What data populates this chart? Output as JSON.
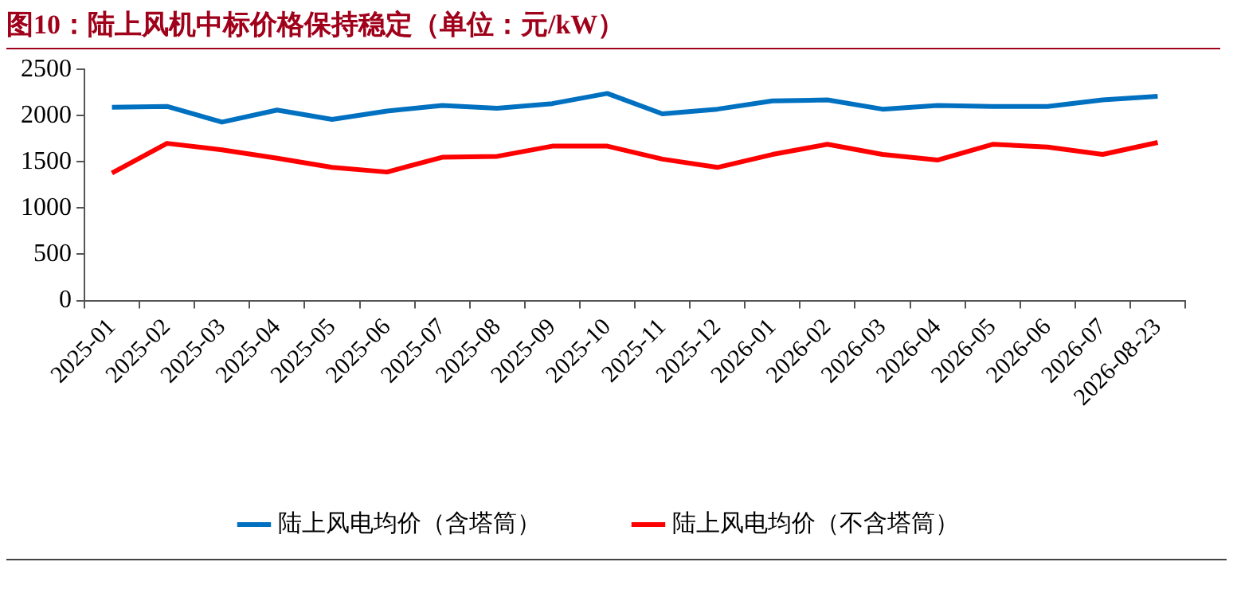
{
  "chart_data": {
    "type": "line",
    "title": "图10：陆上风机中标价格保持稳定（单位：元/kW）",
    "categories": [
      "2025-01",
      "2025-02",
      "2025-03",
      "2025-04",
      "2025-05",
      "2025-06",
      "2025-07",
      "2025-08",
      "2025-09",
      "2025-10",
      "2025-11",
      "2025-12",
      "2026-01",
      "2026-02",
      "2026-03",
      "2026-04",
      "2026-05",
      "2026-06",
      "2026-07",
      "2026-08-23"
    ],
    "series": [
      {
        "name": "陆上风电均价（含塔筒）",
        "color": "#0070c0",
        "values": [
          2090,
          2100,
          1930,
          2060,
          1960,
          2050,
          2110,
          2080,
          2130,
          2240,
          2020,
          2070,
          2160,
          2170,
          2070,
          2110,
          2100,
          2100,
          2170,
          2210
        ]
      },
      {
        "name": "陆上风电均价（不含塔筒）",
        "color": "#ff0000",
        "values": [
          1380,
          1700,
          1630,
          1540,
          1440,
          1390,
          1550,
          1560,
          1670,
          1670,
          1530,
          1440,
          1580,
          1690,
          1580,
          1520,
          1690,
          1660,
          1580,
          1710
        ]
      }
    ],
    "ylim": [
      0,
      2500
    ],
    "yticks": [
      0,
      500,
      1000,
      1500,
      2000,
      2500
    ],
    "grid": false,
    "legend": "bottom",
    "marker": "none",
    "line_style": "solid"
  }
}
